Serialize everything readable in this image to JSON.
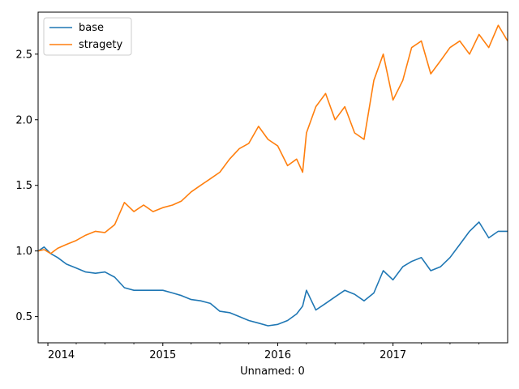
{
  "chart_data": {
    "type": "line",
    "title": "",
    "xlabel": "Unnamed: 0",
    "ylabel": "",
    "xlim": [
      "2013-12-01",
      "2017-12-31"
    ],
    "ylim": [
      0.3,
      2.82
    ],
    "x_ticks": [
      "2014",
      "2015",
      "2016",
      "2017"
    ],
    "y_ticks": [
      "0.5",
      "1.0",
      "1.5",
      "2.0",
      "2.5"
    ],
    "grid": false,
    "legend_position": "top-left",
    "series": [
      {
        "name": "base",
        "color": "#1f77b4",
        "x": [
          "2013-12-01",
          "2013-12-20",
          "2014-01-10",
          "2014-02-01",
          "2014-03-01",
          "2014-04-01",
          "2014-05-01",
          "2014-06-01",
          "2014-07-01",
          "2014-08-01",
          "2014-09-01",
          "2014-10-01",
          "2014-11-01",
          "2014-12-01",
          "2015-01-01",
          "2015-02-01",
          "2015-03-01",
          "2015-04-01",
          "2015-05-01",
          "2015-06-01",
          "2015-07-01",
          "2015-08-01",
          "2015-09-01",
          "2015-10-01",
          "2015-11-01",
          "2015-12-01",
          "2016-01-01",
          "2016-02-01",
          "2016-03-01",
          "2016-03-20",
          "2016-04-01",
          "2016-05-01",
          "2016-06-01",
          "2016-07-01",
          "2016-08-01",
          "2016-09-01",
          "2016-10-01",
          "2016-11-01",
          "2016-12-01",
          "2017-01-01",
          "2017-02-01",
          "2017-03-01",
          "2017-04-01",
          "2017-05-01",
          "2017-06-01",
          "2017-07-01",
          "2017-08-01",
          "2017-09-01",
          "2017-10-01",
          "2017-11-01",
          "2017-12-01",
          "2017-12-31"
        ],
        "values": [
          1.0,
          1.03,
          0.98,
          0.95,
          0.9,
          0.87,
          0.84,
          0.83,
          0.84,
          0.8,
          0.72,
          0.7,
          0.7,
          0.7,
          0.7,
          0.68,
          0.66,
          0.63,
          0.62,
          0.6,
          0.54,
          0.53,
          0.5,
          0.47,
          0.45,
          0.43,
          0.44,
          0.47,
          0.52,
          0.58,
          0.7,
          0.55,
          0.6,
          0.65,
          0.7,
          0.67,
          0.62,
          0.68,
          0.85,
          0.78,
          0.88,
          0.92,
          0.95,
          0.85,
          0.88,
          0.95,
          1.05,
          1.15,
          1.22,
          1.1,
          1.15,
          1.15
        ]
      },
      {
        "name": "stragety",
        "color": "#ff7f0e",
        "x": [
          "2013-12-01",
          "2013-12-20",
          "2014-01-10",
          "2014-02-01",
          "2014-03-01",
          "2014-04-01",
          "2014-05-01",
          "2014-06-01",
          "2014-07-01",
          "2014-08-01",
          "2014-09-01",
          "2014-10-01",
          "2014-11-01",
          "2014-12-01",
          "2015-01-01",
          "2015-02-01",
          "2015-03-01",
          "2015-04-01",
          "2015-05-01",
          "2015-06-01",
          "2015-07-01",
          "2015-08-01",
          "2015-09-01",
          "2015-10-01",
          "2015-11-01",
          "2015-12-01",
          "2016-01-01",
          "2016-02-01",
          "2016-03-01",
          "2016-03-20",
          "2016-04-01",
          "2016-05-01",
          "2016-06-01",
          "2016-07-01",
          "2016-08-01",
          "2016-09-01",
          "2016-10-01",
          "2016-11-01",
          "2016-12-01",
          "2017-01-01",
          "2017-02-01",
          "2017-03-01",
          "2017-04-01",
          "2017-05-01",
          "2017-06-01",
          "2017-07-01",
          "2017-08-01",
          "2017-09-01",
          "2017-10-01",
          "2017-11-01",
          "2017-12-01",
          "2017-12-31"
        ],
        "values": [
          1.0,
          1.01,
          0.98,
          1.02,
          1.05,
          1.08,
          1.12,
          1.15,
          1.14,
          1.2,
          1.37,
          1.3,
          1.35,
          1.3,
          1.33,
          1.35,
          1.38,
          1.45,
          1.5,
          1.55,
          1.6,
          1.7,
          1.78,
          1.82,
          1.95,
          1.85,
          1.8,
          1.65,
          1.7,
          1.6,
          1.9,
          2.1,
          2.2,
          2.0,
          2.1,
          1.9,
          1.85,
          2.3,
          2.5,
          2.15,
          2.3,
          2.55,
          2.6,
          2.35,
          2.45,
          2.55,
          2.6,
          2.5,
          2.65,
          2.55,
          2.72,
          2.6
        ]
      }
    ]
  }
}
